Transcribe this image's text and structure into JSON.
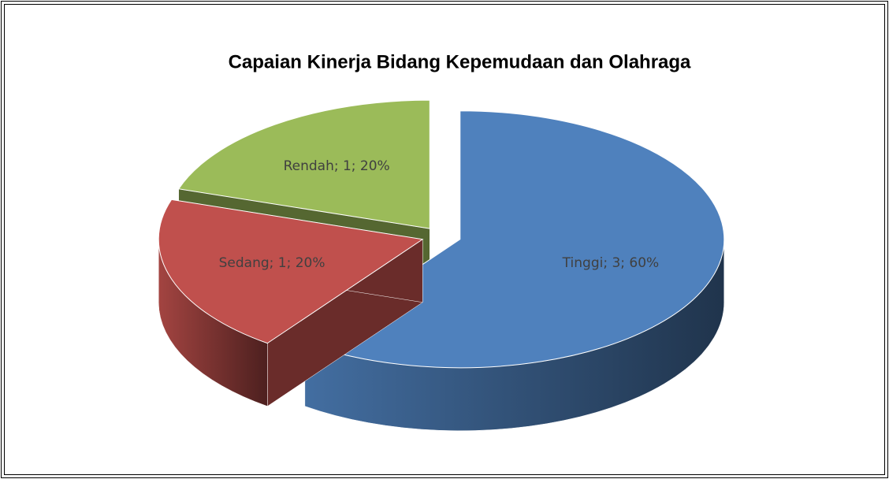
{
  "chart_data": {
    "type": "pie3d",
    "title": "Capaian Kinerja Bidang Kepemudaan dan Olahraga",
    "categories": [
      "Tinggi",
      "Sedang",
      "Rendah"
    ],
    "values": [
      3,
      1,
      1
    ],
    "value_labels": [
      "Tinggi; 3; 60%",
      "Sedang; 1; 20%",
      "Rendah; 1; 20%"
    ],
    "colors": [
      "#4f81bd",
      "#c0504d",
      "#9bbb59"
    ]
  }
}
